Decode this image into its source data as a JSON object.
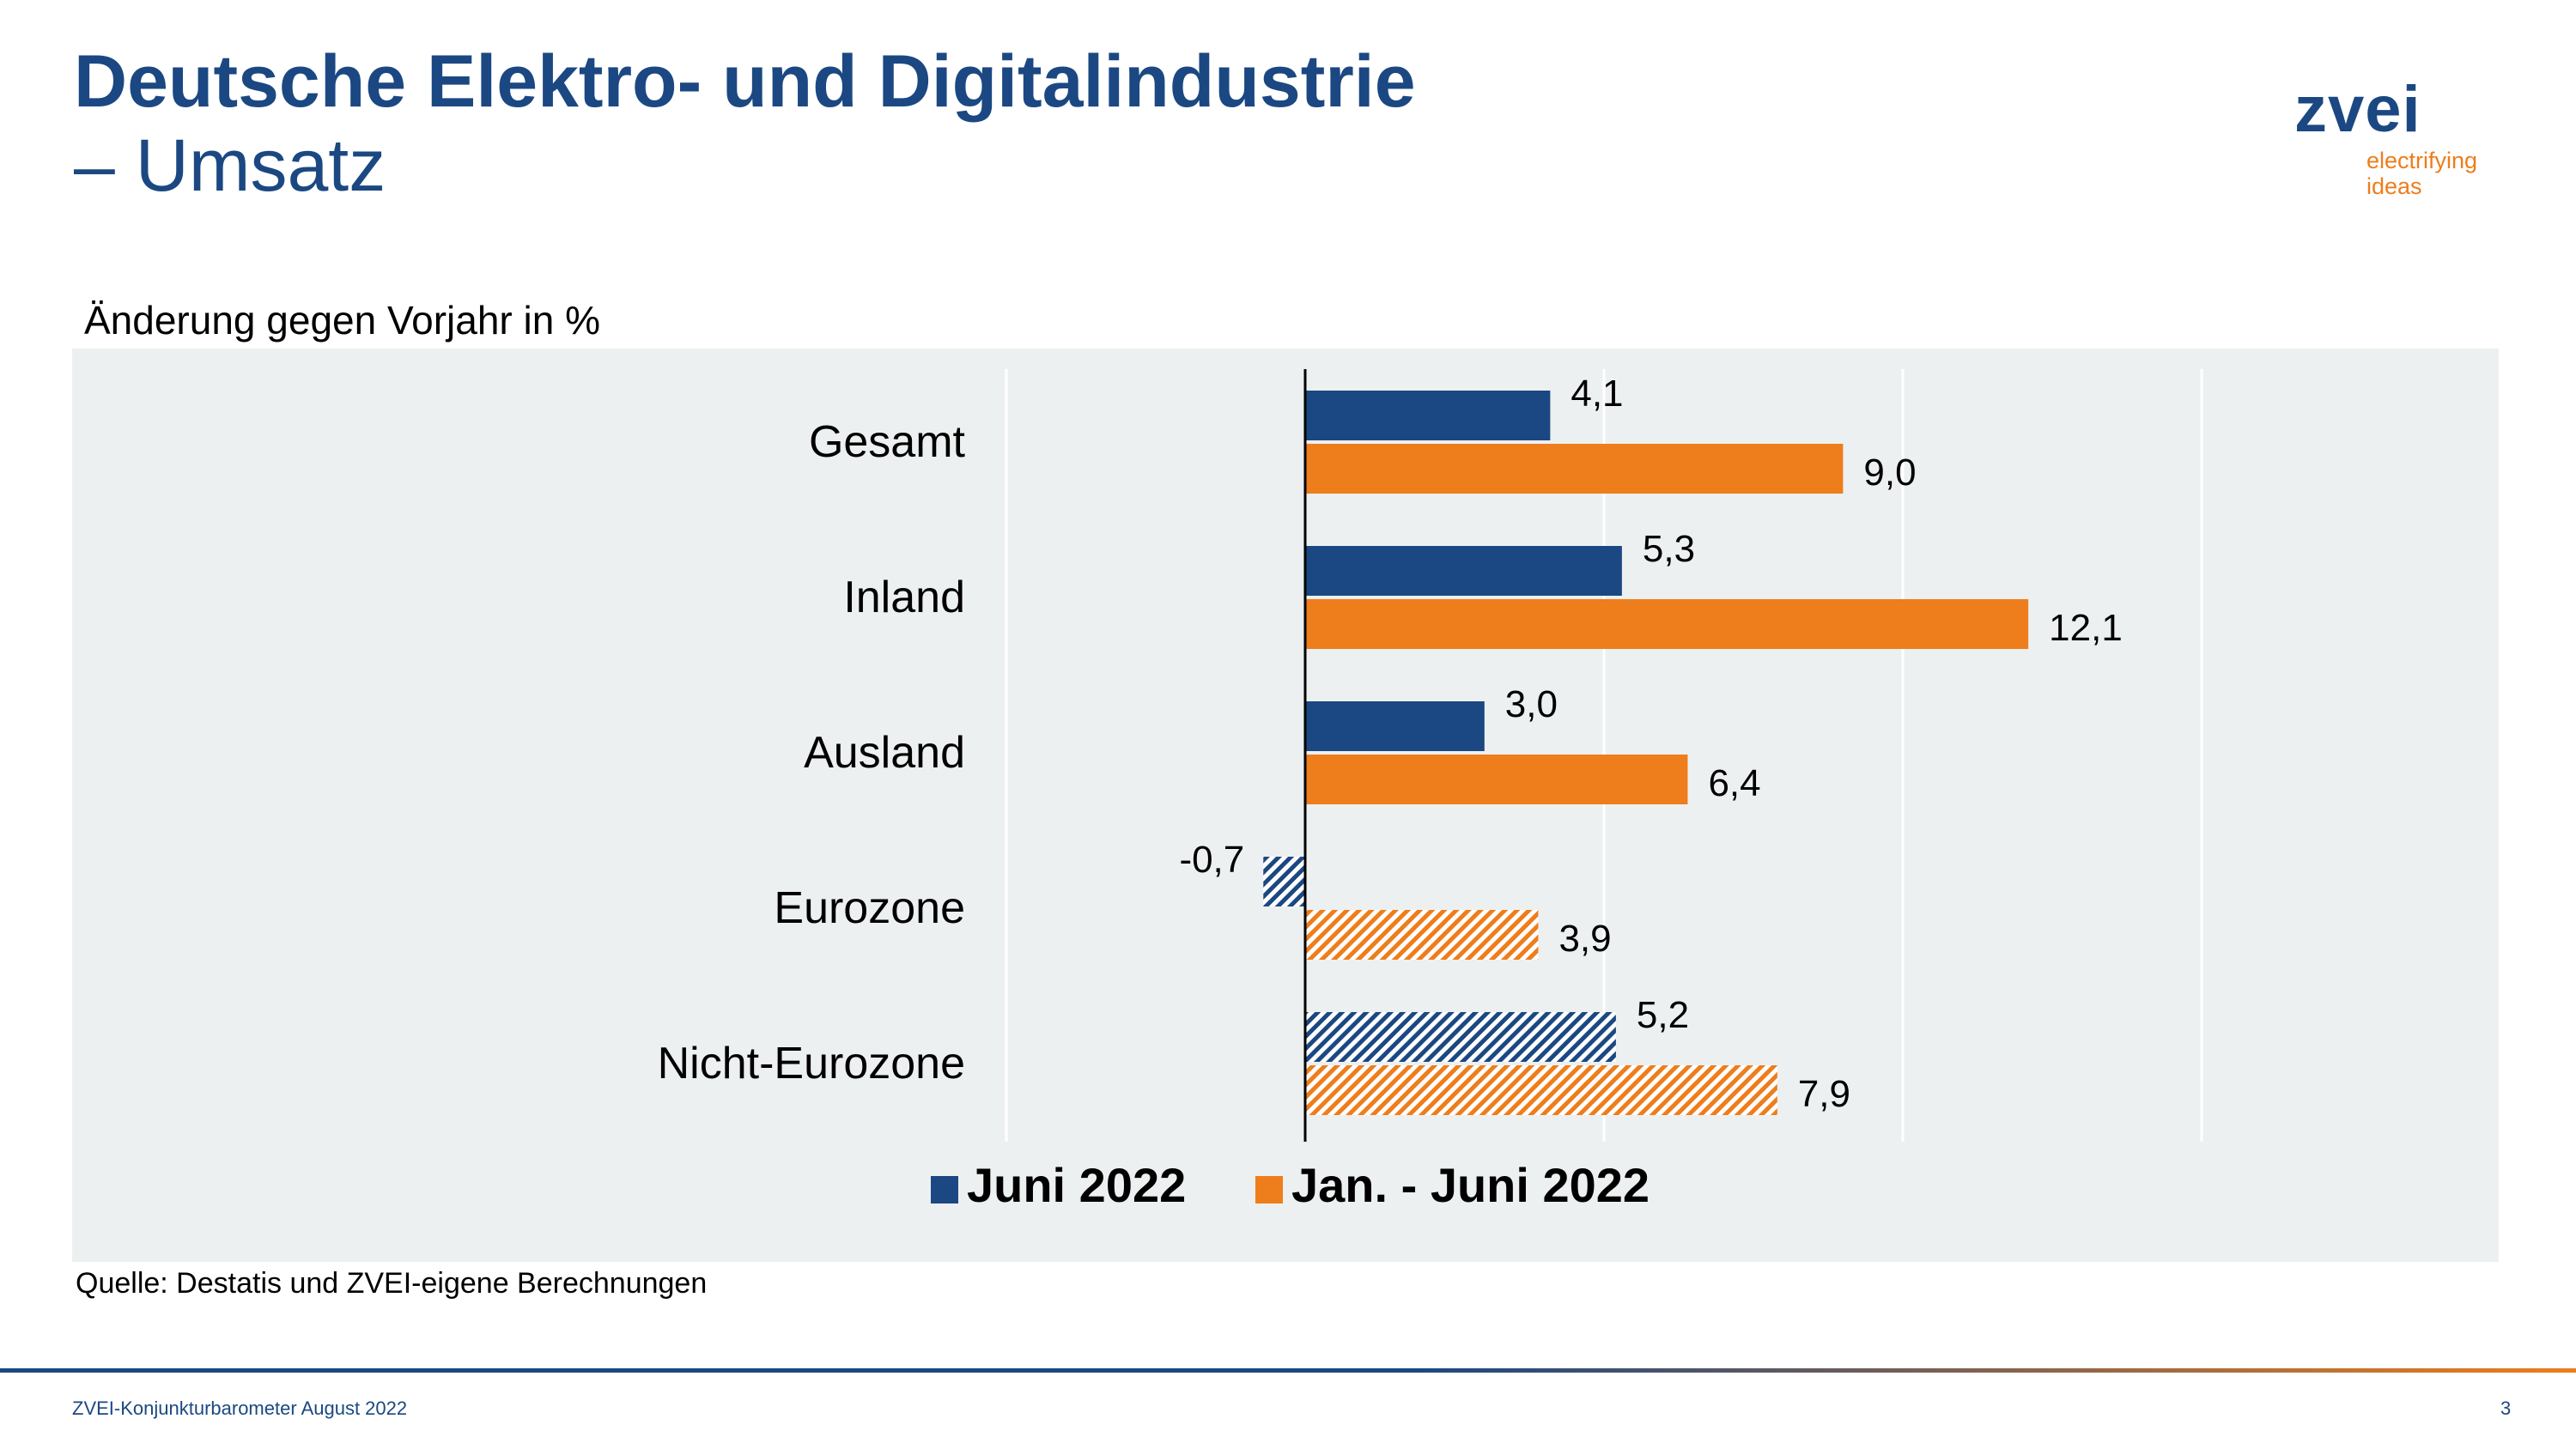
{
  "slide": {
    "title_line1": "Deutsche Elektro- und Digitalindustrie",
    "title_line2": "– Umsatz",
    "subtitle": "Änderung gegen Vorjahr in %",
    "source": "Quelle: Destatis und ZVEI-eigene Berechnungen",
    "footer": "ZVEI-Konjunkturbarometer August 2022",
    "page_number": "3"
  },
  "logo": {
    "name": "zvei",
    "tagline_line1": "electrifying",
    "tagline_line2": "ideas"
  },
  "colors": {
    "title": "#1b4882",
    "series_june": "#1b4882",
    "series_jan_june": "#ee7d1b",
    "chart_background": "#edf0f1"
  },
  "chart_data": {
    "type": "bar",
    "orientation": "horizontal",
    "categories": [
      "Gesamt",
      "Inland",
      "Ausland",
      "Eurozone",
      "Nicht-Eurozone"
    ],
    "series": [
      {
        "name": "Juni 2022",
        "color": "#1b4882",
        "values": [
          4.1,
          5.3,
          3.0,
          -0.7,
          5.2
        ],
        "labels": [
          "4,1",
          "5,3",
          "3,0",
          "-0,7",
          "5,2"
        ],
        "hatched": [
          false,
          false,
          false,
          true,
          true
        ]
      },
      {
        "name": "Jan. - Juni 2022",
        "color": "#ee7d1b",
        "values": [
          9.0,
          12.1,
          6.4,
          3.9,
          7.9
        ],
        "labels": [
          "9,0",
          "12,1",
          "6,4",
          "3,9",
          "7,9"
        ],
        "hatched": [
          false,
          false,
          false,
          true,
          true
        ]
      }
    ],
    "xlim": [
      -5,
      15
    ],
    "grid": true,
    "legend_position": "bottom"
  }
}
